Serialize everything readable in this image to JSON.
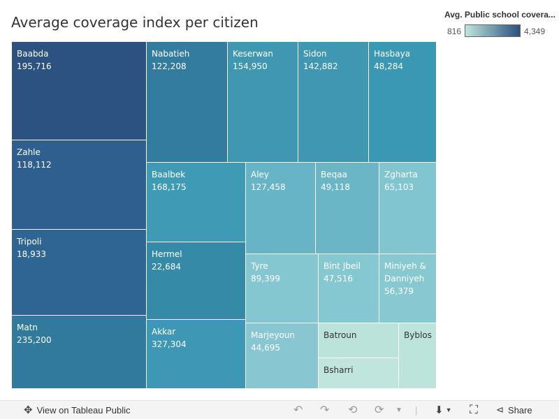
{
  "title": "Average coverage index per citizen",
  "legend": {
    "title": "Avg. Public school covera...",
    "min_label": "816",
    "max_label": "4,349",
    "color_low": "#bfe6dc",
    "color_high": "#2a4f7e"
  },
  "chart_data": {
    "type": "treemap",
    "title": "Average coverage index per citizen",
    "color_legend": {
      "title": "Avg. Public school covera...",
      "min": 816,
      "max": 4349
    },
    "items": [
      {
        "name": "Baabda",
        "value_label": "195,716",
        "color": "#2c5282"
      },
      {
        "name": "Zahle",
        "value_label": "118,112",
        "color": "#2f5f8e"
      },
      {
        "name": "Tripoli",
        "value_label": "18,933",
        "color": "#2f6592"
      },
      {
        "name": "Matn",
        "value_label": "235,200",
        "color": "#317a9e"
      },
      {
        "name": "Nabatieh",
        "value_label": "122,208",
        "color": "#347c9f"
      },
      {
        "name": "Keserwan",
        "value_label": "154,950",
        "color": "#3f97b2"
      },
      {
        "name": "Sidon",
        "value_label": "142,882",
        "color": "#3f97b2"
      },
      {
        "name": "Hasbaya",
        "value_label": "48,284",
        "color": "#3a98b5"
      },
      {
        "name": "Baalbek",
        "value_label": "168,175",
        "color": "#3f9ab5"
      },
      {
        "name": "Hermel",
        "value_label": "22,684",
        "color": "#358aa8"
      },
      {
        "name": "Akkar",
        "value_label": "327,304",
        "color": "#3e97b4"
      },
      {
        "name": "Aley",
        "value_label": "127,458",
        "color": "#66b4c5"
      },
      {
        "name": "Beqaa",
        "value_label": "49,118",
        "color": "#6ab6c6"
      },
      {
        "name": "Zgharta",
        "value_label": "65,103",
        "color": "#80c5cf"
      },
      {
        "name": "Tyre",
        "value_label": "89,399",
        "color": "#84c7d0"
      },
      {
        "name": "Bint Jbeil",
        "value_label": "47,516",
        "color": "#86c8d1"
      },
      {
        "name": "Miniyeh & Danniyeh",
        "value_label": "56,379",
        "color": "#88c8d0"
      },
      {
        "name": "Marjeyoun",
        "value_label": "44,695",
        "color": "#88c7d2"
      },
      {
        "name": "Batroun",
        "value_label": "",
        "color": "#bce3da"
      },
      {
        "name": "Bsharri",
        "value_label": "",
        "color": "#bfe5dc"
      },
      {
        "name": "Byblos",
        "value_label": "",
        "color": "#bde4da"
      }
    ]
  },
  "toolbar": {
    "view_label": "View on Tableau Public",
    "share_label": "Share",
    "icons": [
      "tableau-logo-icon",
      "undo-icon",
      "redo-icon",
      "revert-icon",
      "refresh-icon",
      "download-icon",
      "fullscreen-icon",
      "share-icon"
    ]
  }
}
